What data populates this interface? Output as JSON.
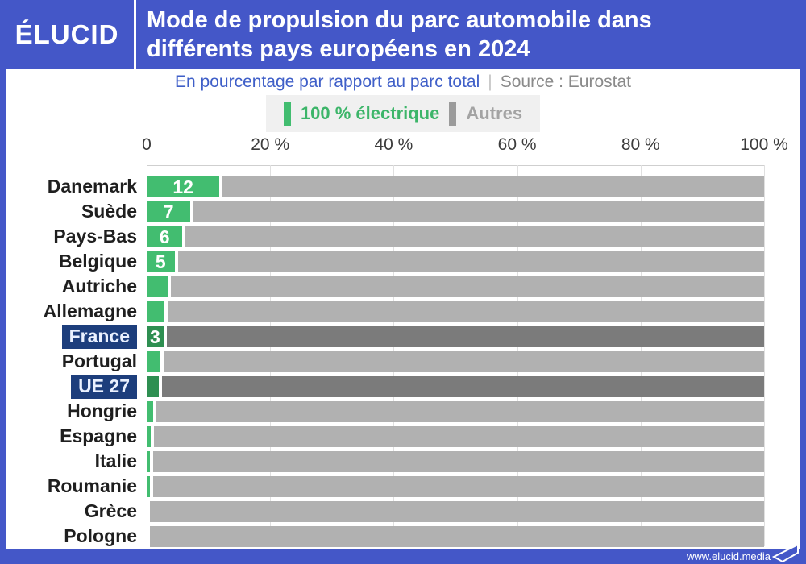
{
  "header": {
    "logo": "ÉLUCID",
    "title_line1": "Mode de propulsion du parc automobile dans",
    "title_line2": "différents pays européens en 2024"
  },
  "subtitle": {
    "text": "En pourcentage par rapport au parc total",
    "separator": "|",
    "source": "Source : Eurostat"
  },
  "legend": {
    "electric_label": "100 % électrique",
    "others_label": "Autres"
  },
  "footer": {
    "url": "www.elucid.media"
  },
  "colors": {
    "header_blue": "#4457c8",
    "chip_navy": "#1d3e7c",
    "green": "#42bd70",
    "green_dark": "#2e8f51",
    "gray": "#b1b1b1",
    "gray_dark": "#7b7b7b",
    "legend_bg": "#f0f0f0",
    "subtitle_blue": "#3f5fc8",
    "source_gray": "#8a8a8a",
    "legend_gray_text": "#a3a3a3",
    "legend_green_text": "#3cb569"
  },
  "chart_data": {
    "type": "bar",
    "orientation": "horizontal",
    "stacked": true,
    "title": "Mode de propulsion du parc automobile dans différents pays européens en 2024",
    "subtitle": "En pourcentage par rapport au parc total",
    "source": "Source : Eurostat",
    "unit": "%",
    "xlim": [
      0,
      100
    ],
    "grid": true,
    "legend_position": "top",
    "x_ticks": [
      {
        "pct": 0,
        "label": "0"
      },
      {
        "pct": 20,
        "label": "20 %"
      },
      {
        "pct": 40,
        "label": "40 %"
      },
      {
        "pct": 60,
        "label": "60 %"
      },
      {
        "pct": 80,
        "label": "80 %"
      },
      {
        "pct": 100,
        "label": "100 %"
      }
    ],
    "series_names": [
      "100 % électrique",
      "Autres"
    ],
    "highlighted": [
      "France",
      "UE 27"
    ],
    "countries": [
      {
        "name": "Danemark",
        "electric_pct": 11.8,
        "autres_pct": 88.2,
        "bar_label": "12",
        "highlight": false
      },
      {
        "name": "Suède",
        "electric_pct": 7.1,
        "autres_pct": 92.9,
        "bar_label": "7",
        "highlight": false
      },
      {
        "name": "Pays-Bas",
        "electric_pct": 5.8,
        "autres_pct": 94.2,
        "bar_label": "6",
        "highlight": false
      },
      {
        "name": "Belgique",
        "electric_pct": 4.5,
        "autres_pct": 95.5,
        "bar_label": "5",
        "highlight": false
      },
      {
        "name": "Autriche",
        "electric_pct": 3.4,
        "autres_pct": 96.6,
        "bar_label": "",
        "highlight": false
      },
      {
        "name": "Allemagne",
        "electric_pct": 2.9,
        "autres_pct": 97.1,
        "bar_label": "",
        "highlight": false
      },
      {
        "name": "France",
        "electric_pct": 2.7,
        "autres_pct": 97.3,
        "bar_label": "3",
        "highlight": true
      },
      {
        "name": "Portugal",
        "electric_pct": 2.2,
        "autres_pct": 97.8,
        "bar_label": "",
        "highlight": false
      },
      {
        "name": "UE 27",
        "electric_pct": 1.9,
        "autres_pct": 98.1,
        "bar_label": "",
        "highlight": true
      },
      {
        "name": "Hongrie",
        "electric_pct": 1.0,
        "autres_pct": 99.0,
        "bar_label": "",
        "highlight": false
      },
      {
        "name": "Espagne",
        "electric_pct": 0.6,
        "autres_pct": 99.4,
        "bar_label": "",
        "highlight": false
      },
      {
        "name": "Italie",
        "electric_pct": 0.5,
        "autres_pct": 99.5,
        "bar_label": "",
        "highlight": false
      },
      {
        "name": "Roumanie",
        "electric_pct": 0.5,
        "autres_pct": 99.5,
        "bar_label": "",
        "highlight": false
      },
      {
        "name": "Grèce",
        "electric_pct": 0.0,
        "autres_pct": 100.0,
        "bar_label": "",
        "highlight": false
      },
      {
        "name": "Pologne",
        "electric_pct": 0.0,
        "autres_pct": 100.0,
        "bar_label": "",
        "highlight": false
      }
    ]
  }
}
